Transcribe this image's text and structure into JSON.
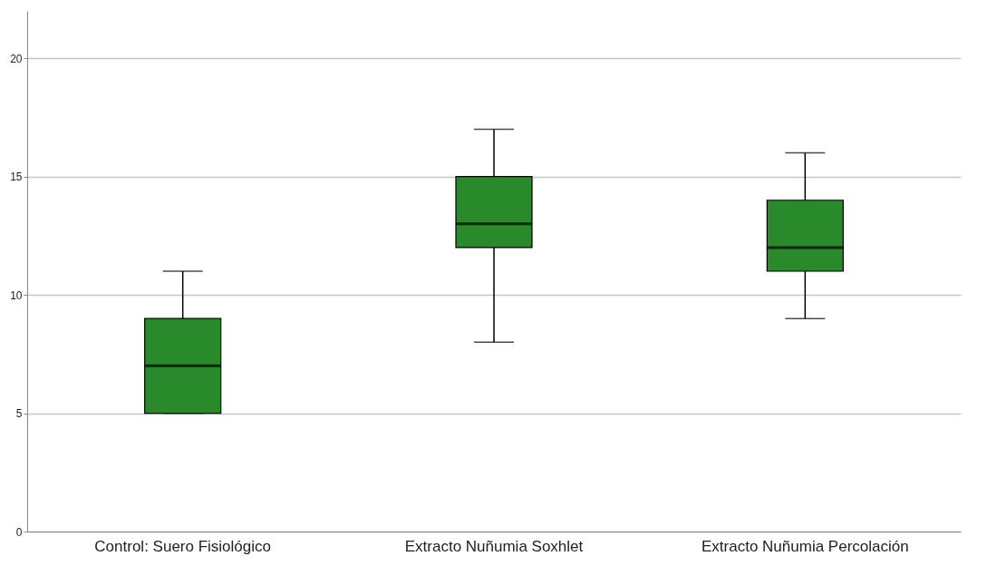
{
  "chart_data": {
    "type": "box",
    "categories": [
      "Control: Suero Fisiológico",
      "Extracto Nuñumia Soxhlet",
      "Extracto Nuñumia Percolación"
    ],
    "boxes": [
      {
        "low": 5,
        "q1": 5,
        "median": 7,
        "q3": 9,
        "high": 11
      },
      {
        "low": 8,
        "q1": 12,
        "median": 13,
        "q3": 15,
        "high": 17
      },
      {
        "low": 9,
        "q1": 11,
        "median": 12,
        "q3": 14,
        "high": 16
      }
    ],
    "color": "#298a2b",
    "ylim": [
      0,
      22
    ],
    "yticks": [
      0,
      5,
      10,
      15,
      20
    ],
    "grid": "y"
  }
}
